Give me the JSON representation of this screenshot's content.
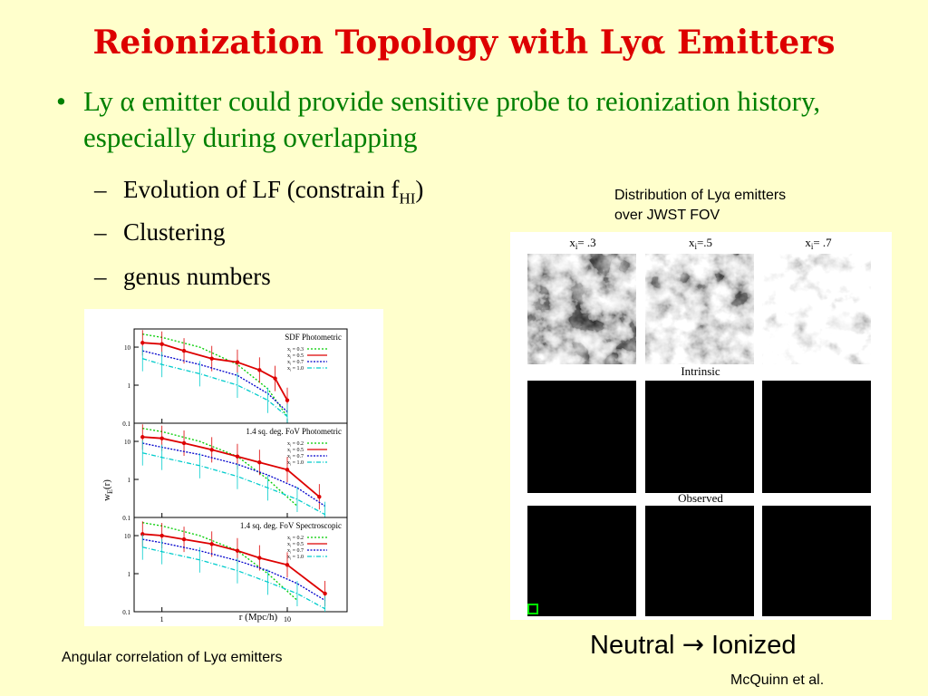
{
  "title": {
    "main": "Reionization Topology with Ly",
    "greek": "α",
    "end": " Emitters"
  },
  "bullet": {
    "symbol": "•",
    "pre": "Ly ",
    "greek": "α",
    "rest": " emitter could provide sensitive probe to reionization history, especially during overlapping"
  },
  "subbullets": [
    {
      "dash": "–",
      "pre": "Evolution of LF (constrain f",
      "sub": "HI",
      "post": ")"
    },
    {
      "dash": "–",
      "text": "Clustering"
    },
    {
      "dash": "–",
      "text": "genus numbers"
    }
  ],
  "captions": {
    "dist_pre": "Distribution of Ly",
    "dist_greek": "α",
    "dist_post": " emitters",
    "dist_line2": "over JWST FOV",
    "ang_pre": "Angular correlation of Ly",
    "ang_greek": "α",
    "ang_post": " emitters",
    "neutral": "Neutral",
    "arrow": "→",
    "ionized": "Ionized",
    "credit": "McQuinn et al."
  },
  "maps": {
    "column_labels": [
      {
        "x": "x",
        "sub": "i",
        "val": "= .3"
      },
      {
        "x": "x",
        "sub": "i",
        "val": "=.5"
      },
      {
        "x": "x",
        "sub": "i",
        "val": "= .7"
      }
    ],
    "row_labels": [
      "Intrinsic",
      "Observed"
    ],
    "neutral_fraction_bright": [
      0.3,
      0.5,
      0.7
    ]
  },
  "chart_data": {
    "type": "line",
    "xlabel": "r (Mpc/h)",
    "ylabel": "wE(r)",
    "ylabel_main": "w",
    "ylabel_sub": "E",
    "ylabel_tail": "(r)",
    "xscale": "log",
    "yscale": "log",
    "xlim": [
      0.6,
      30
    ],
    "ylim": [
      0.1,
      30
    ],
    "x_ticks": [
      "1",
      "10"
    ],
    "y_ticks": [
      "10",
      "1",
      "0.1"
    ],
    "panels": [
      {
        "title": "SDF Photometric",
        "series": [
          {
            "name": "x_i = 0.3",
            "label_x": "x",
            "label_sub": "i",
            "label_val": " = 0.3",
            "color": "#00cc00",
            "x": [
              0.7,
              1,
              2,
              4,
              7,
              10
            ],
            "y": [
              22,
              18,
              10,
              3.5,
              0.8,
              0.15
            ]
          },
          {
            "name": "x_i = 0.5",
            "label_x": "x",
            "label_sub": "i",
            "label_val": " = 0.5",
            "color": "#dd0000",
            "x": [
              0.7,
              1,
              1.5,
              2.5,
              4,
              6,
              8,
              10
            ],
            "y": [
              13,
              12,
              8,
              5,
              4,
              2.5,
              1.5,
              0.4
            ]
          },
          {
            "name": "x_i = 0.7",
            "label_x": "x",
            "label_sub": "i",
            "label_val": " = 0.7",
            "color": "#0000cc",
            "x": [
              0.7,
              1,
              2,
              4,
              7,
              10
            ],
            "y": [
              8,
              6,
              3.5,
              1.8,
              0.6,
              0.2
            ]
          },
          {
            "name": "x_i = 1.0",
            "label_x": "x",
            "label_sub": "i",
            "label_val": " = 1.0",
            "color": "#00cccc",
            "x": [
              0.7,
              1,
              2,
              4,
              7,
              10
            ],
            "y": [
              5,
              3.5,
              2,
              1,
              0.4,
              0.15
            ]
          }
        ]
      },
      {
        "title": "1.4 sq. deg. FoV Photometric",
        "series": [
          {
            "name": "x_i = 0.2",
            "label_x": "x",
            "label_sub": "i",
            "label_val": " = 0.2",
            "color": "#00cc00",
            "x": [
              0.7,
              1,
              2,
              4,
              7,
              12
            ],
            "y": [
              22,
              18,
              10,
              4,
              1,
              0.2
            ]
          },
          {
            "name": "x_i = 0.5",
            "label_x": "x",
            "label_sub": "i",
            "label_val": " = 0.5",
            "color": "#dd0000",
            "x": [
              0.7,
              1,
              1.5,
              2.5,
              4,
              6,
              10,
              18
            ],
            "y": [
              13,
              12,
              9,
              6,
              4,
              2.8,
              1.8,
              0.35
            ]
          },
          {
            "name": "x_i = 0.7",
            "label_x": "x",
            "label_sub": "i",
            "label_val": " = 0.7",
            "color": "#0000cc",
            "x": [
              0.7,
              1,
              2,
              4,
              7,
              12,
              20
            ],
            "y": [
              9,
              7,
              4.5,
              2.5,
              1.3,
              0.6,
              0.2
            ]
          },
          {
            "name": "x_i = 1.0",
            "label_x": "x",
            "label_sub": "i",
            "label_val": " = 1.0",
            "color": "#00cccc",
            "x": [
              0.7,
              1,
              2,
              4,
              7,
              12,
              20
            ],
            "y": [
              5,
              3.8,
              2.3,
              1.2,
              0.6,
              0.3,
              0.12
            ]
          }
        ]
      },
      {
        "title": "1.4 sq. deg. FoV Spectroscopic",
        "series": [
          {
            "name": "x_i = 0.2",
            "label_x": "x",
            "label_sub": "i",
            "label_val": " = 0.2",
            "color": "#00cc00",
            "x": [
              0.7,
              1,
              2,
              4,
              7,
              12
            ],
            "y": [
              22,
              18,
              10,
              4,
              1,
              0.2
            ]
          },
          {
            "name": "x_i = 0.5",
            "label_x": "x",
            "label_sub": "i",
            "label_val": " = 0.5",
            "color": "#dd0000",
            "x": [
              0.7,
              1,
              1.5,
              2.5,
              4,
              6,
              10,
              20
            ],
            "y": [
              11,
              10,
              8,
              6,
              4,
              2.6,
              1.7,
              0.3
            ]
          },
          {
            "name": "x_i = 0.7",
            "label_x": "x",
            "label_sub": "i",
            "label_val": " = 0.7",
            "color": "#0000cc",
            "x": [
              0.7,
              1,
              2,
              4,
              7,
              12,
              20
            ],
            "y": [
              8,
              6.5,
              4,
              2.2,
              1.2,
              0.55,
              0.2
            ]
          },
          {
            "name": "x_i = 1.0",
            "label_x": "x",
            "label_sub": "i",
            "label_val": " = 1.0",
            "color": "#00cccc",
            "x": [
              0.7,
              1,
              2,
              4,
              7,
              12,
              20
            ],
            "y": [
              5,
              3.8,
              2.3,
              1.2,
              0.6,
              0.3,
              0.12
            ]
          }
        ]
      }
    ]
  }
}
